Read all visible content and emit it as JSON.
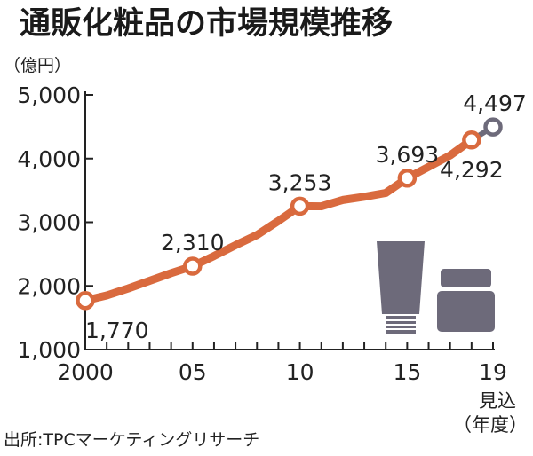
{
  "chart_data": {
    "type": "line",
    "title": "通販化粧品の市場規模推移",
    "unit_label": "（億円）",
    "x_axis_label": "（年度）",
    "source": "出所:TPCマーケティングリサーチ",
    "ylim": [
      1000,
      5000
    ],
    "yticks": [
      {
        "value": 1000,
        "label": "1,000"
      },
      {
        "value": 2000,
        "label": "2,000"
      },
      {
        "value": 3000,
        "label": "3,000"
      },
      {
        "value": 4000,
        "label": "4,000"
      },
      {
        "value": 5000,
        "label": "5,000"
      }
    ],
    "xlim": [
      2000,
      2019
    ],
    "xticks_major": [
      {
        "value": 2000,
        "label": "2000"
      },
      {
        "value": 2005,
        "label": "05"
      },
      {
        "value": 2010,
        "label": "10"
      },
      {
        "value": 2015,
        "label": "15"
      },
      {
        "value": 2019,
        "label": "19"
      }
    ],
    "forecast_label": "見込",
    "series": [
      {
        "color": "#d96a3e",
        "points": [
          {
            "x": 2000,
            "y": 1770
          },
          {
            "x": 2001,
            "y": 1850
          },
          {
            "x": 2002,
            "y": 1960
          },
          {
            "x": 2003,
            "y": 2080
          },
          {
            "x": 2004,
            "y": 2200
          },
          {
            "x": 2005,
            "y": 2310
          },
          {
            "x": 2006,
            "y": 2470
          },
          {
            "x": 2007,
            "y": 2640
          },
          {
            "x": 2008,
            "y": 2800
          },
          {
            "x": 2009,
            "y": 3020
          },
          {
            "x": 2010,
            "y": 3253
          },
          {
            "x": 2011,
            "y": 3250
          },
          {
            "x": 2012,
            "y": 3350
          },
          {
            "x": 2013,
            "y": 3400
          },
          {
            "x": 2014,
            "y": 3460
          },
          {
            "x": 2015,
            "y": 3693
          },
          {
            "x": 2016,
            "y": 3870
          },
          {
            "x": 2017,
            "y": 4050
          },
          {
            "x": 2018,
            "y": 4292
          },
          {
            "x": 2019,
            "y": 4497
          }
        ]
      }
    ],
    "labeled_points": [
      {
        "x": 2000,
        "y": 1770,
        "label": "1,770",
        "place": "below"
      },
      {
        "x": 2005,
        "y": 2310,
        "label": "2,310",
        "place": "above"
      },
      {
        "x": 2010,
        "y": 3253,
        "label": "3,253",
        "place": "above"
      },
      {
        "x": 2015,
        "y": 3693,
        "label": "3,693",
        "place": "above"
      },
      {
        "x": 2018,
        "y": 4292,
        "label": "4,292",
        "place": "below"
      },
      {
        "x": 2019,
        "y": 4497,
        "label": "4,497",
        "place": "above",
        "forecast": true
      }
    ],
    "forecast_color": "#6d6a7a",
    "icon_color": "#6d6a7a",
    "icons": [
      "cosmetic-tube-icon",
      "cosmetic-jar-icon"
    ]
  }
}
